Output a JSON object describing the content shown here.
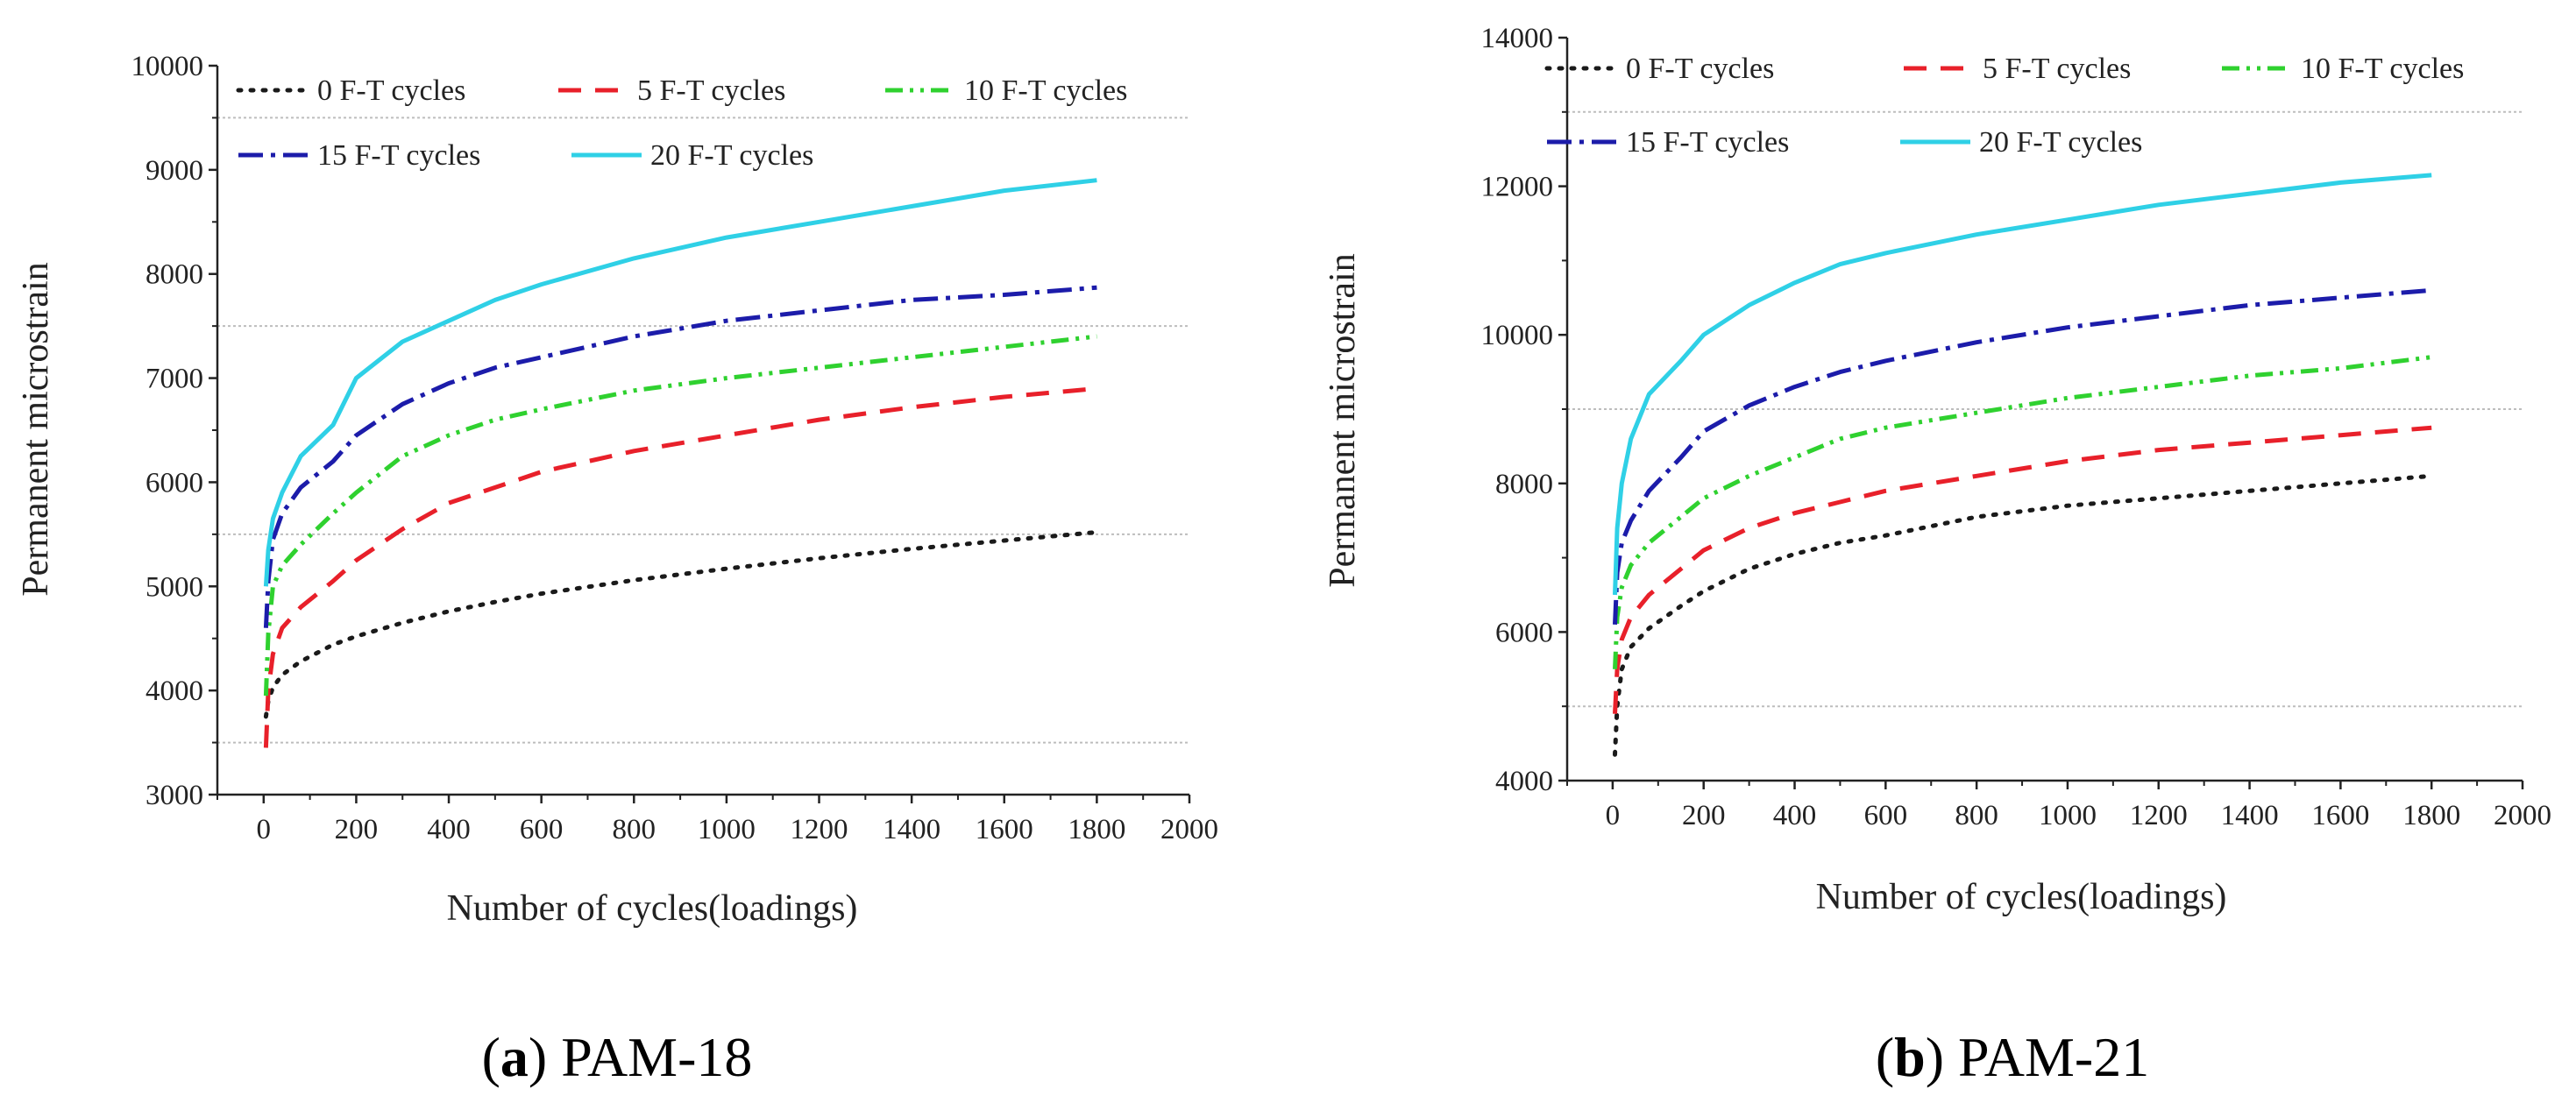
{
  "captions": [
    {
      "letter": "a",
      "text": "PAM-18"
    },
    {
      "letter": "b",
      "text": "PAM-21"
    }
  ],
  "series_styles": [
    {
      "name": "0 F-T cycles",
      "color": "#1a1a1a",
      "dash": "3 11",
      "width": 5
    },
    {
      "name": "5 F-T cycles",
      "color": "#e8202a",
      "dash": "26 16",
      "width": 5
    },
    {
      "name": "10 F-T cycles",
      "color": "#2fd12f",
      "dash": "20 8 4 8 4 8",
      "width": 5
    },
    {
      "name": "15 F-T cycles",
      "color": "#1c1caa",
      "dash": "28 9 5 9",
      "width": 5
    },
    {
      "name": "20 F-T cycles",
      "color": "#2fd0e6",
      "dash": "",
      "width": 5
    }
  ],
  "chart_data": [
    {
      "type": "line",
      "title": "",
      "xlabel": "Number of cycles(loadings)",
      "ylabel": "Permanent microstrain",
      "xlim": [
        -100,
        2000
      ],
      "ylim": [
        3000,
        10000
      ],
      "xticks": [
        0,
        200,
        400,
        600,
        800,
        1000,
        1200,
        1400,
        1600,
        1800,
        2000
      ],
      "yticks": [
        3000,
        4000,
        5000,
        6000,
        7000,
        8000,
        9000,
        10000
      ],
      "gridlines": [
        3500,
        5500,
        7500,
        9500
      ],
      "legend": "top-left",
      "x": [
        5,
        10,
        20,
        40,
        80,
        150,
        200,
        300,
        400,
        500,
        600,
        800,
        1000,
        1200,
        1400,
        1600,
        1800
      ],
      "series": [
        {
          "name": "0 F-T cycles",
          "values": [
            3750,
            3900,
            4030,
            4150,
            4280,
            4440,
            4520,
            4650,
            4760,
            4850,
            4930,
            5060,
            5170,
            5270,
            5360,
            5440,
            5520
          ]
        },
        {
          "name": "5 F-T cycles",
          "values": [
            3450,
            4000,
            4350,
            4600,
            4800,
            5050,
            5250,
            5550,
            5800,
            5950,
            6100,
            6300,
            6450,
            6600,
            6720,
            6820,
            6900
          ]
        },
        {
          "name": "10 F-T cycles",
          "values": [
            3950,
            4550,
            5000,
            5200,
            5400,
            5700,
            5900,
            6250,
            6450,
            6600,
            6700,
            6880,
            7000,
            7100,
            7200,
            7300,
            7400
          ]
        },
        {
          "name": "15 F-T cycles",
          "values": [
            4600,
            5050,
            5450,
            5700,
            5950,
            6200,
            6450,
            6750,
            6950,
            7100,
            7200,
            7400,
            7550,
            7650,
            7750,
            7800,
            7870
          ]
        },
        {
          "name": "20 F-T cycles",
          "values": [
            5000,
            5350,
            5650,
            5900,
            6250,
            6550,
            7000,
            7350,
            7550,
            7750,
            7900,
            8150,
            8350,
            8500,
            8650,
            8800,
            8900
          ]
        }
      ]
    },
    {
      "type": "line",
      "title": "",
      "xlabel": "Number of cycles(loadings)",
      "ylabel": "Permanent microstrain",
      "xlim": [
        -100,
        2000
      ],
      "ylim": [
        4000,
        14000
      ],
      "xticks": [
        0,
        200,
        400,
        600,
        800,
        1000,
        1200,
        1400,
        1600,
        1800,
        2000
      ],
      "yticks": [
        4000,
        6000,
        8000,
        10000,
        12000,
        14000
      ],
      "gridlines": [
        5000,
        9000,
        13000
      ],
      "legend": "top-left",
      "x": [
        5,
        10,
        20,
        40,
        80,
        150,
        200,
        300,
        400,
        500,
        600,
        800,
        1000,
        1200,
        1400,
        1600,
        1800
      ],
      "series": [
        {
          "name": "0 F-T cycles",
          "values": [
            4350,
            5000,
            5500,
            5800,
            6050,
            6350,
            6550,
            6850,
            7050,
            7200,
            7300,
            7550,
            7700,
            7800,
            7900,
            8000,
            8100
          ]
        },
        {
          "name": "5 F-T cycles",
          "values": [
            4900,
            5500,
            5900,
            6200,
            6500,
            6850,
            7100,
            7400,
            7600,
            7750,
            7900,
            8100,
            8300,
            8450,
            8550,
            8650,
            8750
          ]
        },
        {
          "name": "10 F-T cycles",
          "values": [
            5500,
            6200,
            6600,
            6900,
            7200,
            7550,
            7800,
            8100,
            8350,
            8600,
            8750,
            8950,
            9150,
            9300,
            9450,
            9550,
            9700
          ]
        },
        {
          "name": "15 F-T cycles",
          "values": [
            6100,
            6800,
            7200,
            7500,
            7900,
            8350,
            8700,
            9050,
            9300,
            9500,
            9650,
            9900,
            10100,
            10250,
            10400,
            10500,
            10600
          ]
        },
        {
          "name": "20 F-T cycles",
          "values": [
            6500,
            7400,
            8000,
            8600,
            9200,
            9650,
            10000,
            10400,
            10700,
            10950,
            11100,
            11350,
            11550,
            11750,
            11900,
            12050,
            12150
          ]
        }
      ]
    }
  ]
}
